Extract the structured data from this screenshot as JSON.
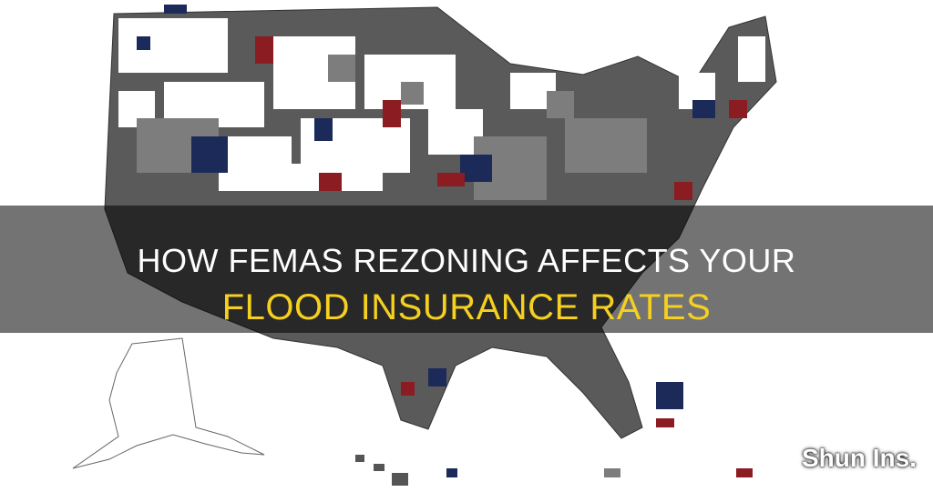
{
  "title": {
    "line1": "HOW FEMAS REZONING AFFECTS YOUR",
    "line2": "FLOOD INSURANCE RATES"
  },
  "watermark": "Shun Ins."
}
